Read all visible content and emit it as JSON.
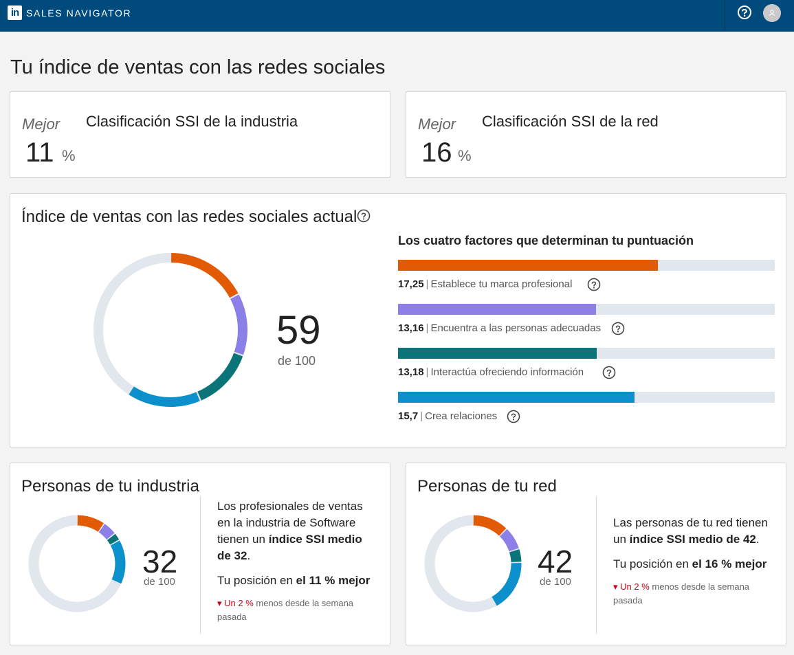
{
  "header": {
    "logo": "in",
    "brand": "SALES NAVIGATOR",
    "icons": [
      "help-icon",
      "avatar"
    ]
  },
  "page": {
    "title": "Tu índice de ventas con las redes sociales"
  },
  "industry_rank": {
    "label": "Mejor",
    "value": "11",
    "unit": "%",
    "title": "Clasificación SSI de la industria"
  },
  "network_rank": {
    "label": "Mejor",
    "value": "16",
    "unit": "%",
    "title": "Clasificación SSI de la red"
  },
  "current": {
    "title": "Índice de ventas con las redes sociales actual",
    "score": "59",
    "of": "de 100",
    "factors_title": "Los cuatro factores que determinan tu puntuación",
    "factors": [
      {
        "value": "17,25",
        "label": "Establece tu marca profesional",
        "score": 17.25,
        "color": "#e35a05"
      },
      {
        "value": "13,16",
        "label": "Encuentra a las personas adecuadas",
        "score": 13.16,
        "color": "#8c80e8"
      },
      {
        "value": "13,18",
        "label": "Interactúa ofreciendo información",
        "score": 13.18,
        "color": "#0b7479"
      },
      {
        "value": "15,7",
        "label": "Crea relaciones",
        "score": 15.7,
        "color": "#0b90cc"
      }
    ]
  },
  "industry": {
    "title": "Personas de tu industria",
    "score": "32",
    "of": "de 100",
    "segments": [
      9.5,
      4.8,
      2.6,
      15.1
    ],
    "desc_pre": "Los profesionales de ventas en la industria de Software tienen un ",
    "desc_bold": "índice SSI medio de 32",
    "desc_post": ".",
    "pos_pre": "Tu posición en ",
    "pos_bold": "el 11 % mejor",
    "trend_red": "Un 2 %",
    "trend_rest": " menos desde la semana pasada"
  },
  "network": {
    "title": "Personas de tu red",
    "score": "42",
    "of": "de 100",
    "segments": [
      12.2,
      7.8,
      4.6,
      17.4
    ],
    "desc_pre": "Las personas de tu red tienen un ",
    "desc_bold": "índice SSI medio de 42",
    "desc_post": ".",
    "pos_pre": "Tu posición en ",
    "pos_bold": "el 16 % mejor",
    "trend_red": "Un 2 %",
    "trend_rest": " menos desde la semana pasada"
  },
  "colors": {
    "header": "#004b7c",
    "track": "#e1e7ec",
    "orange": "#e35a05",
    "purple": "#8c80e8",
    "teal": "#0b7479",
    "blue": "#0b90cc",
    "trend_red": "#d0021b"
  }
}
